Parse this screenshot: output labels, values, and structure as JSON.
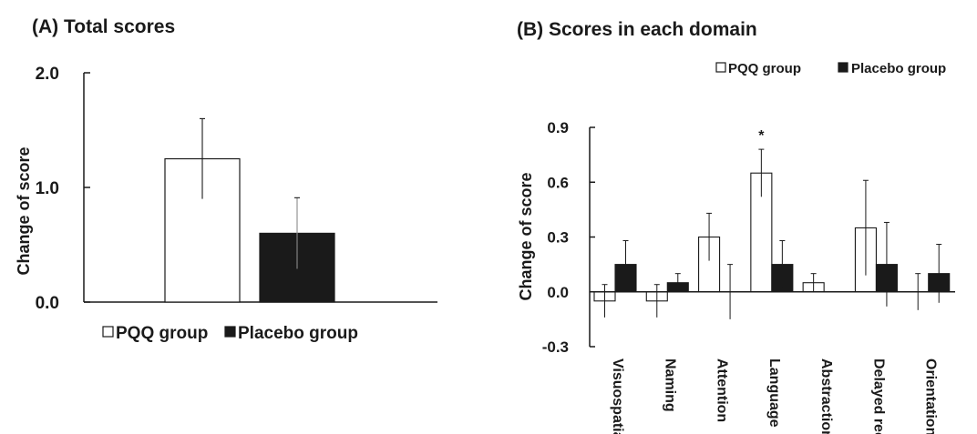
{
  "chart_data": [
    {
      "type": "bar",
      "title": "(A) Total scores",
      "ylabel": "Change of score",
      "ylim": [
        0,
        2
      ],
      "yticks": [
        "0.0",
        "1.0",
        "2.0"
      ],
      "categories": [
        ""
      ],
      "series": [
        {
          "name": "PQQ group",
          "values": [
            1.25
          ],
          "errors": [
            0.35
          ],
          "fill": "#ffffff"
        },
        {
          "name": "Placebo group",
          "values": [
            0.6
          ],
          "errors": [
            0.31
          ],
          "fill": "#1a1a1a"
        }
      ],
      "legend": [
        "PQQ group",
        "Placebo group"
      ],
      "legend_position": "bottom",
      "grid": false
    },
    {
      "type": "bar",
      "title": "(B) Scores in each domain",
      "ylabel": "Change of score",
      "ylim": [
        -0.3,
        0.9
      ],
      "yticks": [
        "0.9",
        "0.6",
        "0.3",
        "0.0",
        "-0.3"
      ],
      "categories": [
        "Visuospatial",
        "Naming",
        "Attention",
        "Language",
        "Abstraction",
        "Delayed recal",
        "Orientation"
      ],
      "series": [
        {
          "name": "PQQ group",
          "values": [
            -0.05,
            -0.05,
            0.3,
            0.65,
            0.05,
            0.35,
            0.0
          ],
          "errors": [
            0.09,
            0.09,
            0.13,
            0.13,
            0.05,
            0.26,
            0.1
          ],
          "fill": "#ffffff"
        },
        {
          "name": "Placebo group",
          "values": [
            0.15,
            0.05,
            0.0,
            0.15,
            0.0,
            0.15,
            0.1
          ],
          "errors": [
            0.13,
            0.05,
            0.15,
            0.13,
            0.0,
            0.23,
            0.16
          ],
          "fill": "#1a1a1a"
        }
      ],
      "annotations": [
        {
          "category": "Language",
          "text": "*"
        }
      ],
      "legend": [
        "PQQ group",
        "Placebo group"
      ],
      "legend_position": "top-right",
      "grid": false
    }
  ]
}
